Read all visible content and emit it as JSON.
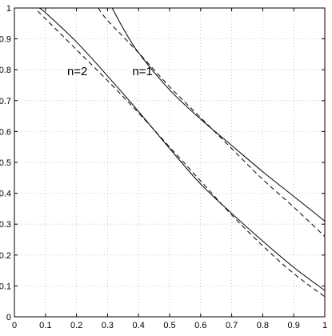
{
  "chart_data": {
    "type": "line",
    "title": "",
    "xlabel": "",
    "ylabel": "",
    "xlim": [
      0,
      1
    ],
    "ylim": [
      0,
      1
    ],
    "grid": true,
    "grid_style": "dotted",
    "x_ticks": [
      0,
      0.1,
      0.2,
      0.3,
      0.4,
      0.5,
      0.6,
      0.7,
      0.8,
      0.9,
      1
    ],
    "y_ticks": [
      0,
      0.1,
      0.2,
      0.3,
      0.4,
      0.5,
      0.6,
      0.7,
      0.8,
      0.9,
      1
    ],
    "x_tick_labels": [
      "0",
      "0.1",
      "0.2",
      "0.3",
      "0.4",
      "0.5",
      "0.6",
      "0.7",
      "0.8",
      "0.9",
      "1"
    ],
    "y_tick_labels": [
      "0",
      "0.1",
      "0.2",
      "0.3",
      "0.4",
      "0.5",
      "0.6",
      "0.7",
      "0.8",
      "0.9",
      "1"
    ],
    "annotations": [
      {
        "text": "n=2",
        "x": 0.17,
        "y": 0.795
      },
      {
        "text": "n=1",
        "x": 0.38,
        "y": 0.795
      }
    ],
    "series": [
      {
        "style": "solid",
        "x": [
          0.08,
          0.1,
          0.2,
          0.3,
          0.4,
          0.5,
          0.6,
          0.7,
          0.8,
          0.9,
          1.0
        ],
        "y": [
          1.0,
          0.985,
          0.89,
          0.78,
          0.665,
          0.545,
          0.43,
          0.335,
          0.245,
          0.16,
          0.085
        ]
      },
      {
        "style": "dashed",
        "x": [
          0.075,
          0.1,
          0.2,
          0.3,
          0.4,
          0.5,
          0.6,
          0.7,
          0.8,
          0.9,
          1.0
        ],
        "y": [
          0.99,
          0.965,
          0.865,
          0.765,
          0.66,
          0.55,
          0.44,
          0.33,
          0.23,
          0.14,
          0.065
        ]
      },
      {
        "style": "solid",
        "x": [
          0.315,
          0.35,
          0.4,
          0.5,
          0.6,
          0.7,
          0.8,
          0.9,
          1.0
        ],
        "y": [
          1.0,
          0.935,
          0.855,
          0.735,
          0.64,
          0.555,
          0.47,
          0.39,
          0.31
        ]
      },
      {
        "style": "dashed",
        "x": [
          0.27,
          0.3,
          0.4,
          0.5,
          0.6,
          0.7,
          0.8,
          0.9,
          1.0
        ],
        "y": [
          1.0,
          0.96,
          0.855,
          0.745,
          0.645,
          0.545,
          0.445,
          0.355,
          0.26
        ]
      }
    ]
  }
}
